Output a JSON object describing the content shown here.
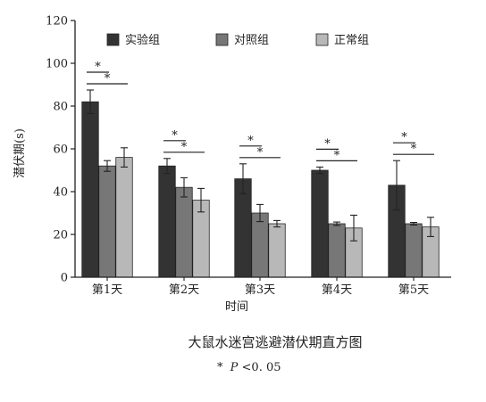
{
  "chart_data": {
    "type": "bar",
    "categories": [
      "第1天",
      "第2天",
      "第3天",
      "第4天",
      "第5天"
    ],
    "series": [
      {
        "name": "实验组",
        "values": [
          82,
          52,
          46,
          50,
          43
        ],
        "errors": [
          5.5,
          3.5,
          7,
          1.5,
          11.5
        ],
        "color": "#333333"
      },
      {
        "name": "对照组",
        "values": [
          52,
          42,
          30,
          25,
          25
        ],
        "errors": [
          2.5,
          4.5,
          4,
          0.8,
          0.6
        ],
        "color": "#777777"
      },
      {
        "name": "正常组",
        "values": [
          56,
          36,
          25,
          23,
          23.5
        ],
        "errors": [
          4.5,
          5.5,
          1.5,
          6,
          4.5
        ],
        "color": "#b8b8b8"
      }
    ],
    "xlabel": "时间",
    "ylabel": "潜伏期(s)",
    "ylim": [
      0,
      120
    ],
    "yticks": [
      0,
      20,
      40,
      60,
      80,
      100,
      120
    ],
    "legend_position": "top",
    "significance_marker": "*",
    "significance": [
      {
        "pair": [
          "实验组",
          "对照组"
        ]
      },
      {
        "pair": [
          "实验组",
          "正常组"
        ]
      }
    ],
    "title": "大鼠水迷宫逃避潜伏期直方图",
    "footnote_star": "*",
    "footnote_p": "P",
    "footnote_rest": "<0. 05"
  }
}
